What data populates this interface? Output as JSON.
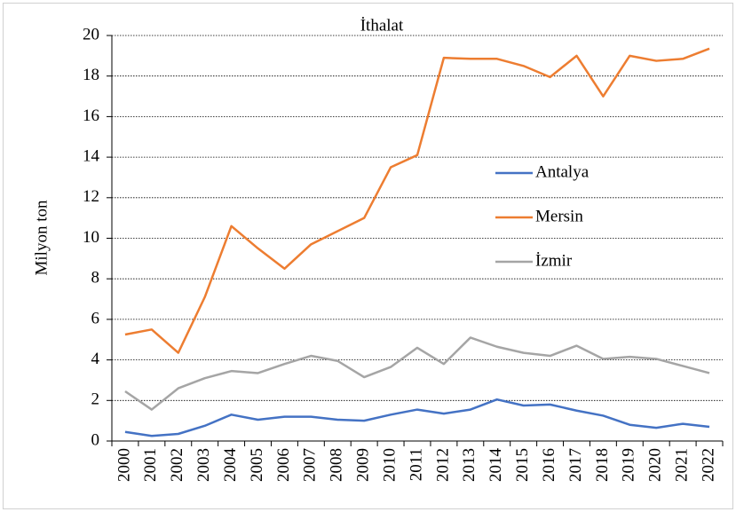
{
  "chart_data": {
    "type": "line",
    "title": "İthalat",
    "y_label": "Milyon ton",
    "categories": [
      "2000",
      "2001",
      "2002",
      "2003",
      "2004",
      "2005",
      "2006",
      "2007",
      "2008",
      "2009",
      "2010",
      "2011",
      "2012",
      "2013",
      "2014",
      "2015",
      "2016",
      "2017",
      "2018",
      "2019",
      "2020",
      "2021",
      "2022"
    ],
    "series": [
      {
        "name": "Antalya",
        "color": "#4472c4",
        "values": [
          0.45,
          0.25,
          0.35,
          0.75,
          1.3,
          1.05,
          1.2,
          1.2,
          1.05,
          1.0,
          1.3,
          1.55,
          1.35,
          1.55,
          2.05,
          1.75,
          1.8,
          1.5,
          1.25,
          0.8,
          0.65,
          0.85,
          0.7
        ]
      },
      {
        "name": "Mersin",
        "color": "#ed7d31",
        "values": [
          5.25,
          5.5,
          4.35,
          7.1,
          10.6,
          9.5,
          8.5,
          9.7,
          10.35,
          11.0,
          13.5,
          14.1,
          18.9,
          18.85,
          18.85,
          18.5,
          17.95,
          19.0,
          17.0,
          19.0,
          18.75,
          18.85,
          19.35
        ]
      },
      {
        "name": "İzmir",
        "color": "#a5a5a5",
        "values": [
          2.45,
          1.55,
          2.6,
          3.1,
          3.45,
          3.35,
          3.8,
          4.2,
          3.95,
          3.15,
          3.65,
          4.6,
          3.8,
          5.1,
          4.65,
          4.35,
          4.2,
          4.7,
          4.05,
          4.15,
          4.05,
          3.7,
          3.35
        ]
      }
    ],
    "ylim": [
      0,
      20
    ],
    "yticks": [
      0,
      2,
      4,
      6,
      8,
      10,
      12,
      14,
      16,
      18,
      20
    ],
    "grid": true,
    "legend": "right"
  }
}
